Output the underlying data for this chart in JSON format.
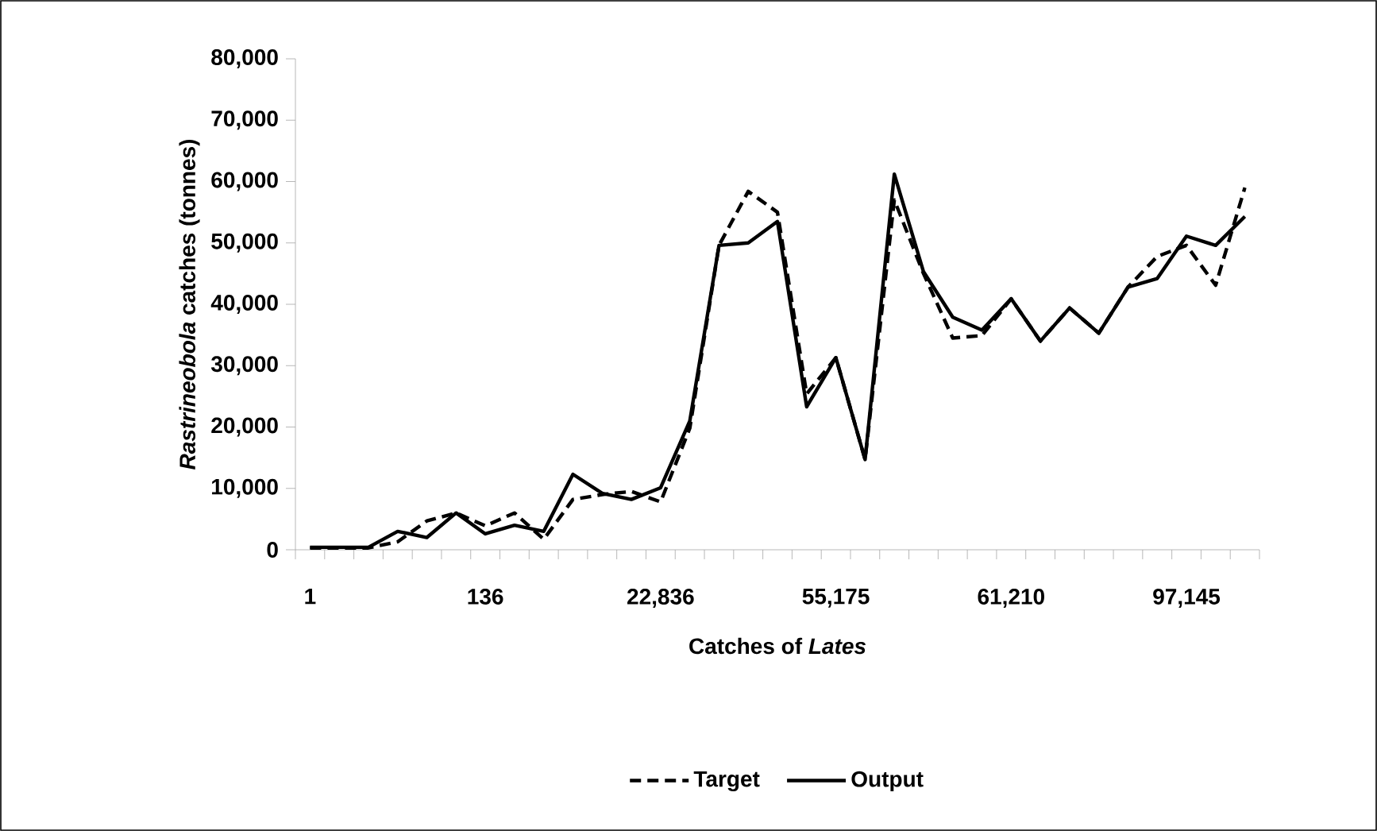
{
  "chart_data": {
    "type": "line",
    "xlabel": "Catches of *Lates*",
    "ylabel": "*Rastrineobola* catches (tonnes)",
    "categories": [
      "1",
      null,
      null,
      null,
      null,
      null,
      "136",
      null,
      null,
      null,
      null,
      null,
      "22,836",
      null,
      null,
      null,
      null,
      null,
      "55,175",
      null,
      null,
      null,
      null,
      null,
      "61,210",
      null,
      null,
      null,
      null,
      null,
      "97,145",
      null,
      null
    ],
    "series": [
      {
        "name": "Target",
        "color": "#000000",
        "line_style": "dashed",
        "values": [
          300,
          300,
          300,
          1300,
          4700,
          6000,
          3900,
          6000,
          1700,
          8200,
          9000,
          9500,
          7800,
          19800,
          49600,
          58400,
          55000,
          25400,
          31300,
          14700,
          57000,
          45000,
          34500,
          34900,
          40900,
          34000,
          39400,
          35300,
          42800,
          47800,
          49600,
          43100,
          59000
        ]
      },
      {
        "name": "Output",
        "color": "#000000",
        "line_style": "solid",
        "values": [
          400,
          400,
          400,
          3000,
          2000,
          6000,
          2600,
          4000,
          3000,
          12300,
          9200,
          8200,
          10100,
          21000,
          49600,
          50000,
          53500,
          23300,
          31300,
          14700,
          61200,
          45300,
          37900,
          35800,
          40900,
          34000,
          39400,
          35300,
          42800,
          44200,
          51100,
          49600,
          54300
        ]
      }
    ],
    "ylim": [
      0,
      80000
    ],
    "yticks": [
      {
        "value": 0,
        "label": "0"
      },
      {
        "value": 10000,
        "label": "10,000"
      },
      {
        "value": 20000,
        "label": "20,000"
      },
      {
        "value": 30000,
        "label": "30,000"
      },
      {
        "value": 40000,
        "label": "40,000"
      },
      {
        "value": 50000,
        "label": "50,000"
      },
      {
        "value": 60000,
        "label": "60,000"
      },
      {
        "value": 70000,
        "label": "70,000"
      },
      {
        "value": 80000,
        "label": "80,000"
      }
    ],
    "legend": "bottom"
  }
}
